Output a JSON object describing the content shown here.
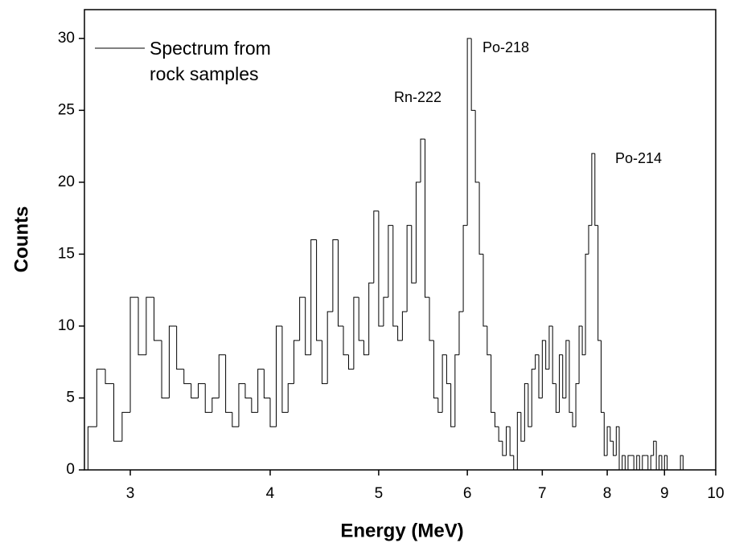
{
  "chart_data": {
    "type": "histogram",
    "x_label": "Energy (MeV)",
    "y_label": "Counts",
    "log_x": true,
    "color": "#000000",
    "legend": "upper left",
    "xlim": [
      2.73,
      10
    ],
    "xticks": [
      3,
      4,
      5,
      6,
      7,
      8,
      9,
      10
    ],
    "ylim": [
      0,
      32
    ],
    "yticks": [
      0,
      5,
      10,
      15,
      20,
      25,
      30
    ],
    "annotations": [
      "Po-218",
      "Rn-222",
      "Po-214"
    ],
    "bins": [
      2.75,
      2.8,
      2.85,
      2.9,
      2.95,
      3.0,
      3.05,
      3.1,
      3.15,
      3.2,
      3.25,
      3.3,
      3.35,
      3.4,
      3.45,
      3.5,
      3.55,
      3.6,
      3.65,
      3.7,
      3.75,
      3.8,
      3.85,
      3.9,
      3.95,
      4.0,
      4.05,
      4.1,
      4.15,
      4.2,
      4.25,
      4.3,
      4.35,
      4.4,
      4.45,
      4.5,
      4.55,
      4.6,
      4.65,
      4.7,
      4.75,
      4.8,
      4.85,
      4.9,
      4.95,
      5.0,
      5.05,
      5.1,
      5.15,
      5.2,
      5.25,
      5.3,
      5.35,
      5.4,
      5.45,
      5.5,
      5.55,
      5.6,
      5.65,
      5.7,
      5.75,
      5.8,
      5.85,
      5.9,
      5.95,
      6.0,
      6.05,
      6.1,
      6.15,
      6.2,
      6.25,
      6.3,
      6.35,
      6.4,
      6.45,
      6.5,
      6.55,
      6.6,
      6.65,
      6.7,
      6.75,
      6.8,
      6.85,
      6.9,
      6.95,
      7.0,
      7.05,
      7.1,
      7.15,
      7.2,
      7.25,
      7.3,
      7.35,
      7.4,
      7.45,
      7.5,
      7.55,
      7.6,
      7.65,
      7.7,
      7.75,
      7.8,
      7.85,
      7.9,
      7.95,
      8.0,
      8.05,
      8.1,
      8.15,
      8.2,
      8.25,
      8.3,
      8.35,
      8.4,
      8.45,
      8.5,
      8.55,
      8.6,
      8.65,
      8.7,
      8.75,
      8.8,
      8.85,
      8.9,
      8.95,
      9.0,
      9.05,
      9.1,
      9.15,
      9.2,
      9.25,
      9.3,
      9.35,
      9.4
    ],
    "series": [
      {
        "name": "Spectrum from rock samples",
        "color": "#000000",
        "values": [
          3,
          7,
          6,
          2,
          4,
          12,
          8,
          12,
          9,
          5,
          10,
          7,
          6,
          5,
          6,
          4,
          5,
          8,
          4,
          3,
          6,
          5,
          4,
          7,
          5,
          3,
          10,
          4,
          6,
          9,
          12,
          8,
          16,
          9,
          6,
          11,
          16,
          10,
          8,
          7,
          12,
          9,
          8,
          13,
          18,
          10,
          12,
          17,
          10,
          9,
          11,
          17,
          13,
          20,
          23,
          12,
          9,
          5,
          4,
          8,
          6,
          3,
          8,
          11,
          17,
          30,
          25,
          20,
          15,
          10,
          8,
          4,
          3,
          2,
          1,
          3,
          1,
          0,
          4,
          2,
          6,
          3,
          7,
          8,
          5,
          9,
          7,
          10,
          6,
          4,
          8,
          5,
          9,
          4,
          3,
          6,
          10,
          8,
          15,
          17,
          22,
          17,
          9,
          4,
          1,
          3,
          2,
          1,
          3,
          0,
          1,
          0,
          1,
          1,
          0,
          1,
          0,
          1,
          1,
          0,
          1,
          2,
          0,
          1,
          0,
          1,
          0,
          0,
          0,
          0,
          0,
          1,
          0
        ]
      }
    ]
  }
}
